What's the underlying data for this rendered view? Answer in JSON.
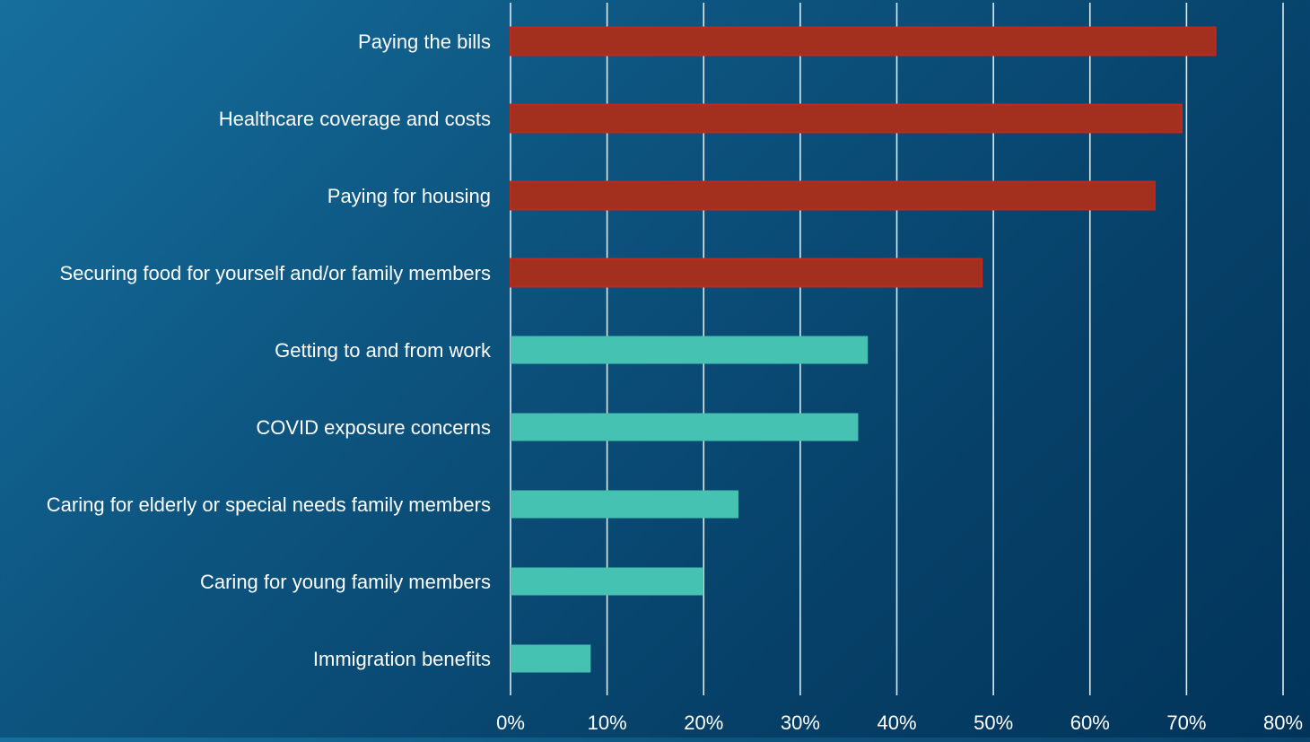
{
  "chart_data": {
    "type": "bar",
    "orientation": "horizontal",
    "title": "",
    "xlabel": "",
    "ylabel": "",
    "xlim": [
      0,
      80
    ],
    "x_ticks": [
      0,
      10,
      20,
      30,
      40,
      50,
      60,
      70,
      80
    ],
    "x_tick_labels": [
      "0%",
      "10%",
      "20%",
      "30%",
      "40%",
      "50%",
      "60%",
      "70%",
      "80%"
    ],
    "grid": true,
    "legend": false,
    "categories": [
      "Paying the bills",
      "Healthcare coverage and costs",
      "Paying for housing",
      "Securing food for yourself and/or family members",
      "Getting to and from work",
      "COVID exposure concerns",
      "Caring for elderly or special needs family members",
      "Caring for young family members",
      "Immigration benefits"
    ],
    "values": [
      73,
      69.5,
      66.7,
      48.8,
      37,
      36,
      23.6,
      20,
      8.3
    ],
    "bar_colors": [
      "#a3301e",
      "#a3301e",
      "#a3301e",
      "#a3301e",
      "#45c2b2",
      "#45c2b2",
      "#45c2b2",
      "#45c2b2",
      "#45c2b2"
    ],
    "colors": {
      "highlight": "#a3301e",
      "highlight_border": "#c0281c",
      "normal": "#45c2b2",
      "gridline": "#d8ecf4",
      "text": "#ffffff"
    }
  }
}
